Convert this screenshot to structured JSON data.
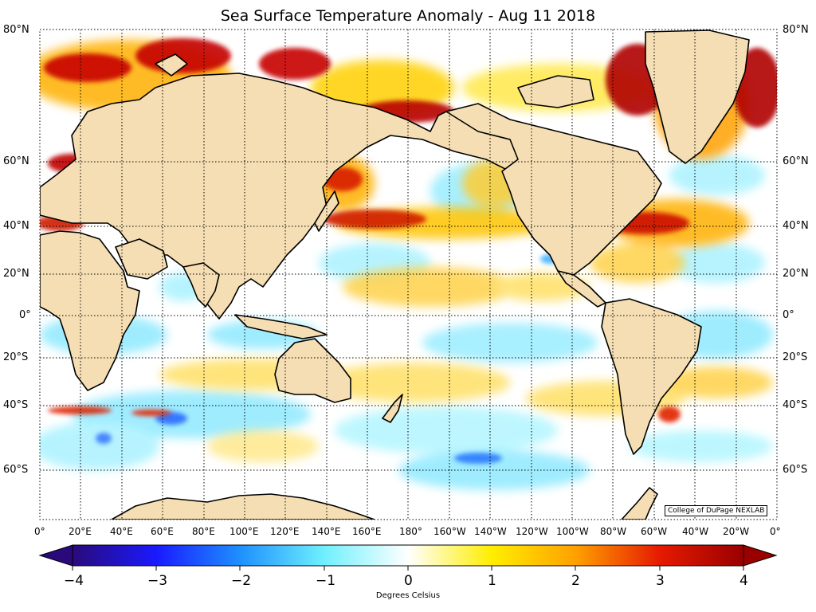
{
  "title": "Sea Surface Temperature Anomaly - Aug 11 2018",
  "credit": "College of DuPage NEXLAB",
  "lat_labels": [
    "80°N",
    "60°N",
    "40°N",
    "20°N",
    "0°",
    "20°S",
    "40°S",
    "60°S"
  ],
  "lon_labels": [
    "0°",
    "20°E",
    "40°E",
    "60°E",
    "80°E",
    "100°E",
    "120°E",
    "140°E",
    "160°E",
    "180°",
    "160°W",
    "140°W",
    "120°W",
    "100°W",
    "80°W",
    "60°W",
    "40°W",
    "20°W",
    "0°"
  ],
  "colorbar": {
    "ticks": [
      "−4",
      "−3",
      "−2",
      "−1",
      "0",
      "1",
      "2",
      "3",
      "4"
    ],
    "caption": "Degrees Celsius",
    "range": [
      -4,
      4
    ],
    "colors": [
      "#2a0a7a",
      "#1f3cff",
      "#2fb8ff",
      "#a8f7ff",
      "#ffffff",
      "#fff200",
      "#ff9a00",
      "#e81c00",
      "#9a0000"
    ]
  },
  "colors": {
    "land": "#f5deb3",
    "ocean_neutral": "#ffffff",
    "warm": "#d40000",
    "cool": "#5ad8ff"
  }
}
